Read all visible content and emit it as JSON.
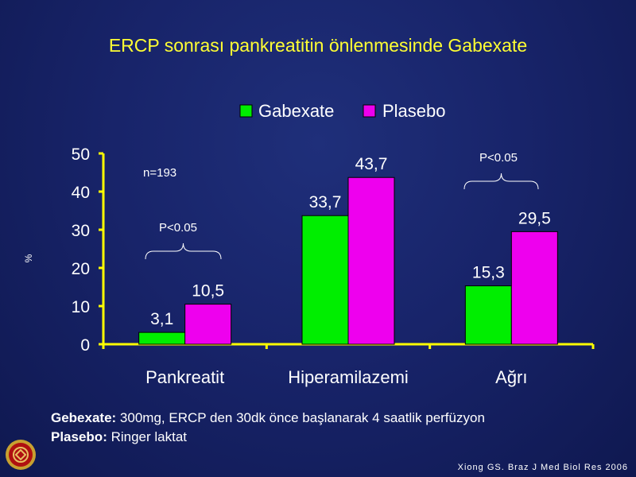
{
  "slide": {
    "title": "ERCP sonrası pankreatitin önlenmesinde Gabexate",
    "footer": {
      "line1_label": "Gebexate:",
      "line1_text": " 300mg, ERCP den 30dk önce başlanarak  4 saatlik perfüzyon",
      "line2_label": "Plasebo:",
      "line2_text": "  Ringer laktat"
    },
    "citation": "Xiong GS. Braz J Med Biol Res 2006"
  },
  "chart_data": {
    "type": "bar",
    "categories": [
      "Pankreatit",
      "Hiperamilazemi",
      "Ağrı"
    ],
    "series": [
      {
        "name": "Gabexate",
        "values": [
          3.1,
          33.7,
          15.3
        ],
        "labels": [
          "3,1",
          "33,7",
          "15,3"
        ],
        "color": "#00ee00"
      },
      {
        "name": "Plasebo",
        "values": [
          10.5,
          43.7,
          29.5
        ],
        "labels": [
          "10,5",
          "43,7",
          "29,5"
        ],
        "color": "#ee00ee"
      }
    ],
    "yticks": [
      0,
      10,
      20,
      30,
      40,
      50
    ],
    "ylim": [
      0,
      50
    ],
    "ylabel": "%",
    "legend_position": "top",
    "annotations": [
      {
        "text": "n=193",
        "category": 0
      },
      {
        "text": "P<0.05",
        "category": 0
      },
      {
        "text": "P<0.05",
        "category": 2
      }
    ],
    "colors": {
      "axis": "#ffff00",
      "text": "#ffffff"
    }
  }
}
